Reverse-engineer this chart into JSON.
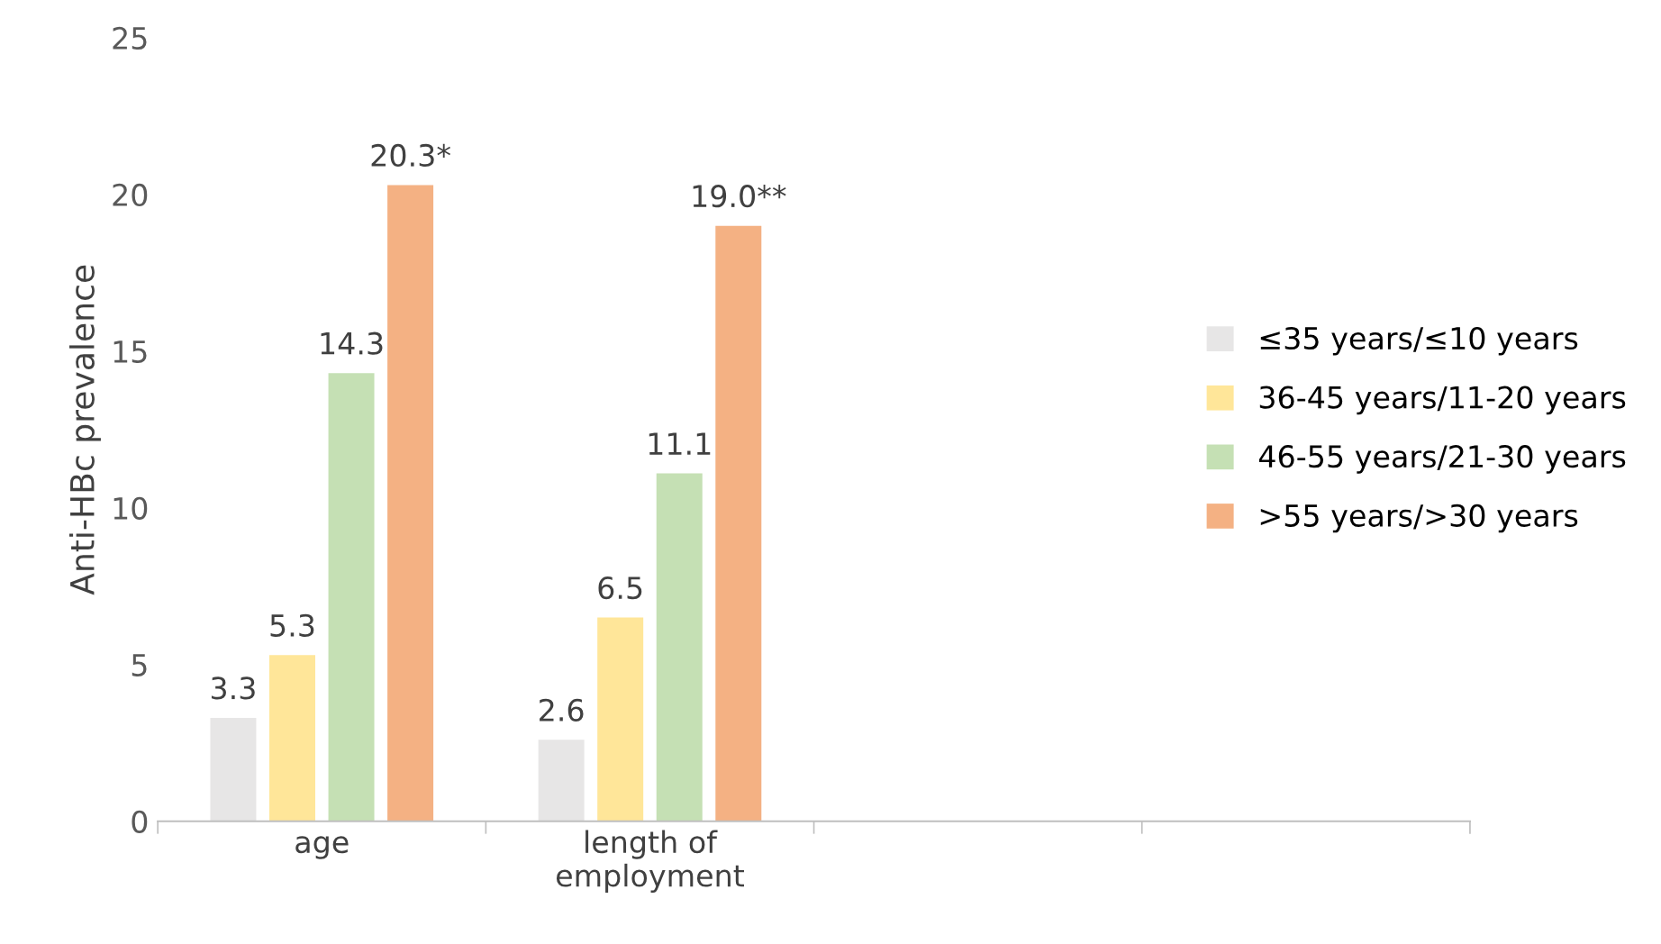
{
  "chart_data": {
    "type": "bar",
    "ylabel": "Anti-HBc prevalence",
    "categories": [
      "age",
      "length of\nemployment",
      null,
      null
    ],
    "series": [
      {
        "name": "≤35 years/≤10 years",
        "color": "#e7e6e6",
        "values": [
          3.3,
          2.6,
          null,
          null
        ],
        "value_labels": [
          "3.3",
          "2.6",
          null,
          null
        ]
      },
      {
        "name": "36-45 years/11-20 years",
        "color": "#ffe699",
        "values": [
          5.3,
          6.5,
          null,
          null
        ],
        "value_labels": [
          "5.3",
          "6.5",
          null,
          null
        ]
      },
      {
        "name": "46-55 years/21-30 years",
        "color": "#c5e0b4",
        "values": [
          14.3,
          11.1,
          null,
          null
        ],
        "value_labels": [
          "14.3",
          "11.1",
          null,
          null
        ]
      },
      {
        "name": ">55 years/>30 years",
        "color": "#f4b183",
        "values": [
          20.3,
          19.0,
          null,
          null
        ],
        "value_labels": [
          "20.3*",
          "19.0**",
          null,
          null
        ]
      }
    ],
    "ylim": [
      0,
      25
    ],
    "yticks": [
      0,
      5,
      10,
      15,
      20,
      25
    ],
    "legend": "right",
    "grid": false
  }
}
